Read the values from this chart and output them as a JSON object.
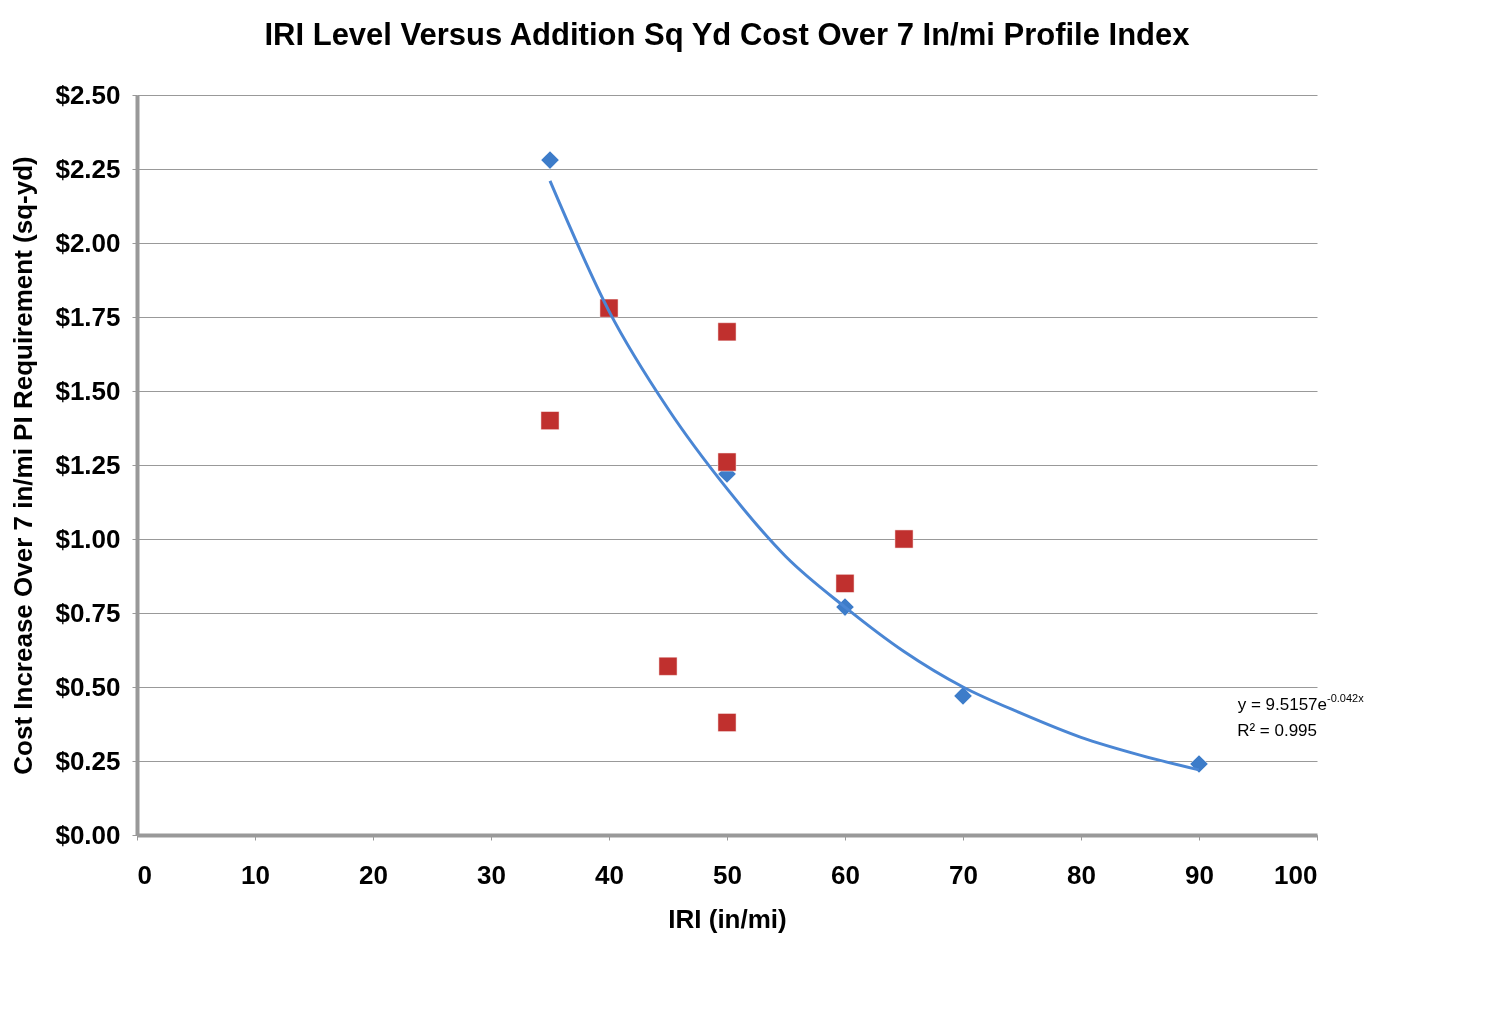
{
  "chart_data": {
    "type": "scatter",
    "title": "IRI Level Versus Addition Sq Yd Cost Over 7 In/mi Profile Index",
    "xlabel": "IRI (in/mi)",
    "ylabel": "Cost Increase Over 7 in/mi PI Requirement (sq-yd)",
    "xlim": [
      0,
      100
    ],
    "xticks": [
      0,
      10,
      20,
      30,
      40,
      50,
      60,
      70,
      80,
      90,
      100
    ],
    "ylim": [
      0,
      2.5
    ],
    "yticks": [
      {
        "value": 0,
        "label": "$0.00"
      },
      {
        "value": 0.25,
        "label": "$0.25"
      },
      {
        "value": 0.5,
        "label": "$0.50"
      },
      {
        "value": 0.75,
        "label": "$0.75"
      },
      {
        "value": 1.0,
        "label": "$1.00"
      },
      {
        "value": 1.25,
        "label": "$1.25"
      },
      {
        "value": 1.5,
        "label": "$1.50"
      },
      {
        "value": 1.75,
        "label": "$1.75"
      },
      {
        "value": 2.0,
        "label": "$2.00"
      },
      {
        "value": 2.25,
        "label": "$2.25"
      },
      {
        "value": 2.5,
        "label": "$2.50"
      }
    ],
    "grid": "y",
    "series": [
      {
        "marker": "diamond",
        "color": "#3d7cc9",
        "x": [
          35,
          50,
          60,
          70,
          90
        ],
        "values": [
          2.28,
          1.22,
          0.77,
          0.47,
          0.24
        ]
      },
      {
        "marker": "square",
        "color": "#c0302e",
        "x": [
          35,
          40,
          50,
          50,
          65,
          60,
          45,
          50
        ],
        "values": [
          1.4,
          1.78,
          1.7,
          1.26,
          1.0,
          0.85,
          0.57,
          0.38
        ]
      },
      {
        "type": "line",
        "marker": "none",
        "line_style": "solid",
        "color": "#4a86d4",
        "x": [
          35,
          40,
          45,
          50,
          55,
          60,
          65,
          70,
          75,
          80,
          85,
          90
        ],
        "values": [
          2.21,
          1.77,
          1.44,
          1.17,
          0.94,
          0.77,
          0.62,
          0.5,
          0.41,
          0.33,
          0.27,
          0.22
        ]
      }
    ],
    "annotations": [
      "y = 9.5157e$^{-0.042x}$",
      "R² = 0.995"
    ]
  }
}
